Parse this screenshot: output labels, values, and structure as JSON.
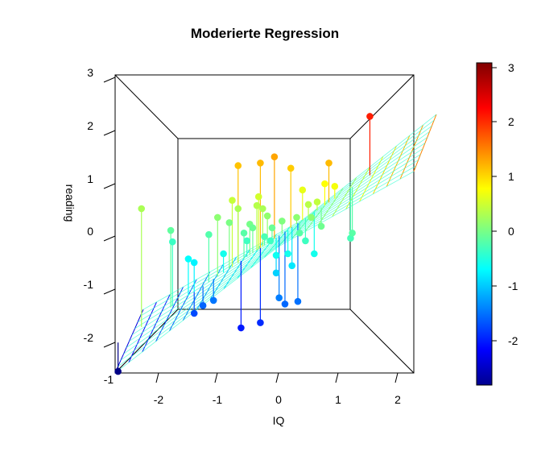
{
  "chart_data": {
    "type": "scatter",
    "title": "Moderierte Regression",
    "xlabel": "IQ",
    "ylabel": "reading",
    "x_ticks": [
      "-1",
      "-2",
      "-1",
      "0",
      "1",
      "2"
    ],
    "y_ticks": [
      "3",
      "2",
      "1",
      "0",
      "-1",
      "-2"
    ],
    "xlim": [
      -2.8,
      2.3
    ],
    "ylim": [
      -2.75,
      3.0
    ],
    "colorbar": {
      "range": [
        -2.75,
        3.1
      ],
      "ticks": [
        "3",
        "2",
        "1",
        "0",
        "-1",
        "-2"
      ],
      "colormap": "jet"
    },
    "points": [
      {
        "x": -2.75,
        "y": -2.72
      },
      {
        "x": -2.35,
        "y": 0.42
      },
      {
        "x": -1.85,
        "y": 0.0
      },
      {
        "x": -1.82,
        "y": -0.22
      },
      {
        "x": -1.55,
        "y": -0.55
      },
      {
        "x": -1.45,
        "y": -0.62
      },
      {
        "x": -1.45,
        "y": -1.6
      },
      {
        "x": -1.3,
        "y": -1.45
      },
      {
        "x": -1.2,
        "y": -0.08
      },
      {
        "x": -1.12,
        "y": -1.35
      },
      {
        "x": -1.05,
        "y": 0.25
      },
      {
        "x": -0.95,
        "y": -0.45
      },
      {
        "x": -0.85,
        "y": 0.15
      },
      {
        "x": -0.8,
        "y": 0.58
      },
      {
        "x": -0.7,
        "y": 1.25
      },
      {
        "x": -0.7,
        "y": 0.42
      },
      {
        "x": -0.65,
        "y": -1.88
      },
      {
        "x": -0.6,
        "y": -0.05
      },
      {
        "x": -0.55,
        "y": -0.2
      },
      {
        "x": -0.5,
        "y": 0.12
      },
      {
        "x": -0.45,
        "y": 0.05
      },
      {
        "x": -0.38,
        "y": 0.48
      },
      {
        "x": -0.35,
        "y": 0.65
      },
      {
        "x": -0.32,
        "y": 1.3
      },
      {
        "x": -0.32,
        "y": -1.78
      },
      {
        "x": -0.28,
        "y": 0.42
      },
      {
        "x": -0.25,
        "y": -0.12
      },
      {
        "x": -0.2,
        "y": 0.28
      },
      {
        "x": -0.15,
        "y": -0.2
      },
      {
        "x": -0.12,
        "y": 0.05
      },
      {
        "x": -0.08,
        "y": 1.42
      },
      {
        "x": -0.05,
        "y": -0.82
      },
      {
        "x": -0.05,
        "y": -0.48
      },
      {
        "x": 0.0,
        "y": -1.3
      },
      {
        "x": 0.05,
        "y": 0.18
      },
      {
        "x": 0.1,
        "y": -1.42
      },
      {
        "x": 0.15,
        "y": -0.45
      },
      {
        "x": 0.2,
        "y": 1.2
      },
      {
        "x": 0.22,
        "y": -0.68
      },
      {
        "x": 0.3,
        "y": 0.25
      },
      {
        "x": 0.32,
        "y": -1.37
      },
      {
        "x": 0.35,
        "y": -0.05
      },
      {
        "x": 0.4,
        "y": 0.78
      },
      {
        "x": 0.45,
        "y": -0.2
      },
      {
        "x": 0.5,
        "y": 0.5
      },
      {
        "x": 0.55,
        "y": 0.25
      },
      {
        "x": 0.6,
        "y": -0.45
      },
      {
        "x": 0.65,
        "y": 0.55
      },
      {
        "x": 0.72,
        "y": 0.08
      },
      {
        "x": 0.78,
        "y": 0.9
      },
      {
        "x": 0.85,
        "y": 1.3
      },
      {
        "x": 0.95,
        "y": 0.85
      },
      {
        "x": 1.22,
        "y": -0.15
      },
      {
        "x": 1.25,
        "y": -0.05
      },
      {
        "x": 1.55,
        "y": 2.2
      }
    ]
  }
}
